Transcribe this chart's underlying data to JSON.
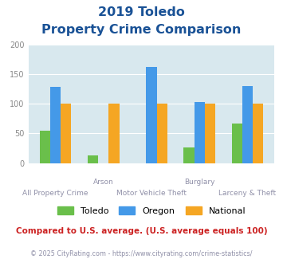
{
  "title_line1": "2019 Toledo",
  "title_line2": "Property Crime Comparison",
  "categories": [
    "All Property Crime",
    "Arson",
    "Motor Vehicle Theft",
    "Burglary",
    "Larceny & Theft"
  ],
  "x_labels_top": [
    "",
    "Arson",
    "",
    "Burglary",
    ""
  ],
  "x_labels_bottom": [
    "All Property Crime",
    "",
    "Motor Vehicle Theft",
    "",
    "Larceny & Theft"
  ],
  "toledo_values": [
    55,
    13,
    0,
    26,
    67
  ],
  "oregon_values": [
    129,
    0,
    163,
    103,
    130
  ],
  "national_values": [
    100,
    100,
    100,
    100,
    100
  ],
  "toledo_color": "#6abf4b",
  "oregon_color": "#4499e8",
  "national_color": "#f5a623",
  "ylim": [
    0,
    200
  ],
  "yticks": [
    0,
    50,
    100,
    150,
    200
  ],
  "bg_color": "#d8e8ee",
  "title_color": "#1a5296",
  "xlabel_color": "#9090a8",
  "legend_labels": [
    "Toledo",
    "Oregon",
    "National"
  ],
  "footnote1": "Compared to U.S. average. (U.S. average equals 100)",
  "footnote2": "© 2025 CityRating.com - https://www.cityrating.com/crime-statistics/",
  "footnote1_color": "#cc2222",
  "footnote2_color": "#9090a8"
}
